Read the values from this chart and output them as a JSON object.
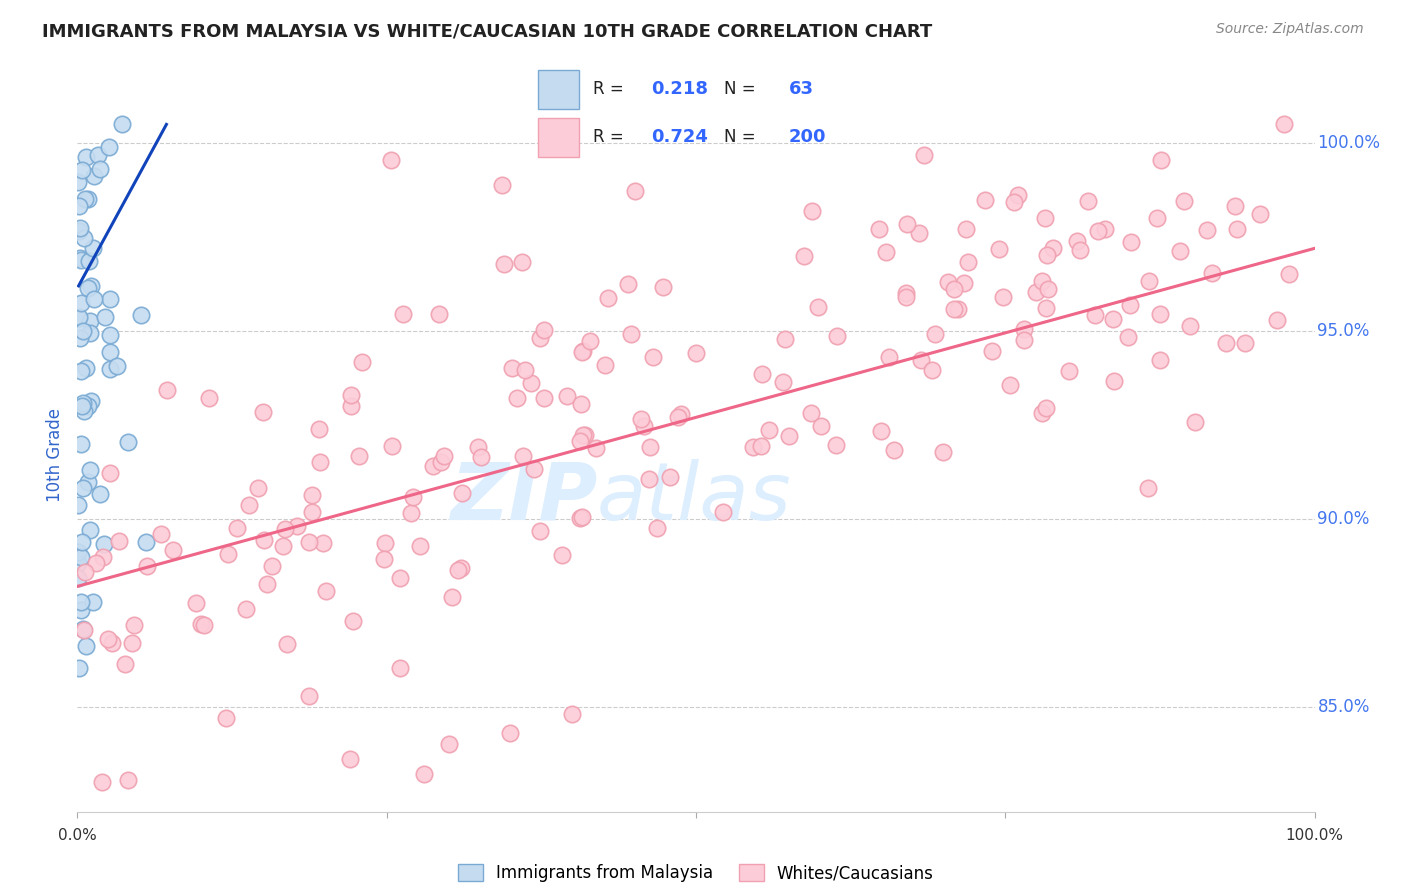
{
  "title": "IMMIGRANTS FROM MALAYSIA VS WHITE/CAUCASIAN 10TH GRADE CORRELATION CHART",
  "source": "Source: ZipAtlas.com",
  "ylabel": "10th Grade",
  "y_labels": [
    "85.0%",
    "90.0%",
    "95.0%",
    "100.0%"
  ],
  "y_ticks": [
    0.85,
    0.9,
    0.95,
    1.0
  ],
  "xlim": [
    0.0,
    1.0
  ],
  "ylim": [
    0.822,
    1.012
  ],
  "legend1_r": "0.218",
  "legend1_n": "63",
  "legend2_r": "0.724",
  "legend2_n": "200",
  "blue_color": "#7aaad4",
  "pink_color": "#f0a0b0",
  "blue_line_color": "#1144bb",
  "pink_line_color": "#ee6688",
  "blue_face": "#c5dcf0",
  "pink_face": "#fcccd8",
  "background_color": "#FFFFFF",
  "grid_color": "#cccccc",
  "right_label_color": "#4477ee",
  "title_color": "#222222",
  "source_color": "#888888",
  "ylabel_color": "#3366cc",
  "legend_r_color": "#222222",
  "legend_n_color": "#3366ff",
  "blue_line_x": [
    0.001,
    0.072
  ],
  "blue_line_y": [
    0.962,
    1.005
  ],
  "pink_line_x": [
    0.0,
    1.0
  ],
  "pink_line_y": [
    0.882,
    0.972
  ]
}
